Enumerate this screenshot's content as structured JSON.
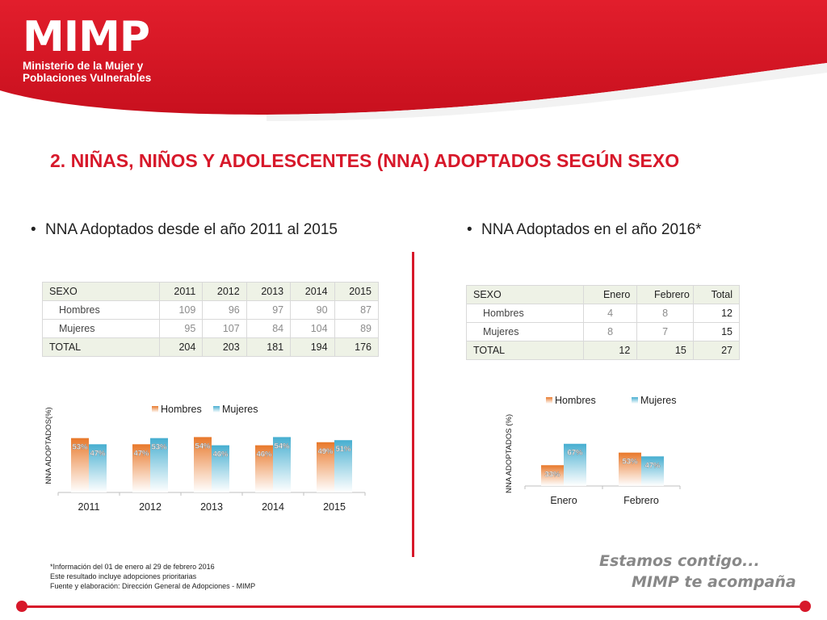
{
  "header": {
    "logo_main": "MIMP",
    "logo_sub_line1": "Ministerio de la Mujer y",
    "logo_sub_line2": "Poblaciones Vulnerables",
    "accent_color": "#d7182a"
  },
  "title": "2. NIÑAS, NIÑOS Y ADOLESCENTES (NNA) ADOPTADOS SEGÚN SEXO",
  "left": {
    "bullet": "NNA Adoptados desde el año 2011 al 2015",
    "table": {
      "headers": [
        "SEXO",
        "2011",
        "2012",
        "2013",
        "2014",
        "2015"
      ],
      "rows": [
        [
          "Hombres",
          "109",
          "96",
          "97",
          "90",
          "87"
        ],
        [
          "Mujeres",
          "95",
          "107",
          "84",
          "104",
          "89"
        ],
        [
          "TOTAL",
          "204",
          "203",
          "181",
          "194",
          "176"
        ]
      ]
    }
  },
  "right": {
    "bullet": "NNA Adoptados en el año 2016*",
    "table": {
      "headers": [
        "SEXO",
        "Enero",
        "Febrero",
        "Total"
      ],
      "rows": [
        [
          "Hombres",
          "4",
          "8",
          "12"
        ],
        [
          "Mujeres",
          "8",
          "7",
          "15"
        ],
        [
          "TOTAL",
          "12",
          "15",
          "27"
        ]
      ]
    }
  },
  "chart_data": [
    {
      "type": "bar",
      "categories": [
        "2011",
        "2012",
        "2013",
        "2014",
        "2015"
      ],
      "series": [
        {
          "name": "Hombres",
          "values": [
            53,
            47,
            54,
            46,
            49
          ],
          "labels": [
            "53%",
            "47%",
            "54%",
            "46%",
            "49%"
          ],
          "color": "#e8782a"
        },
        {
          "name": "Mujeres",
          "values": [
            47,
            53,
            46,
            54,
            51
          ],
          "labels": [
            "47%",
            "53%",
            "46%",
            "54%",
            "51%"
          ],
          "color": "#46aed0"
        }
      ],
      "ylabel": "NNA ADOPTADOS(%)",
      "legend": "top",
      "grid": false
    },
    {
      "type": "bar",
      "categories": [
        "Enero",
        "Febrero"
      ],
      "series": [
        {
          "name": "Hombres",
          "values": [
            33,
            53
          ],
          "labels": [
            "33%",
            "53%"
          ],
          "color": "#e8782a"
        },
        {
          "name": "Mujeres",
          "values": [
            67,
            47
          ],
          "labels": [
            "67%",
            "47%"
          ],
          "color": "#46aed0"
        }
      ],
      "ylabel": "NNA ADOPTADOS (%)",
      "legend": "top",
      "grid": false
    }
  ],
  "footnote": {
    "line1": "*Información del 01 de enero al 29 de febrero 2016",
    "line2": "Este resultado incluye adopciones prioritarias",
    "line3": "Fuente y elaboración: Dirección General de Adopciones - MIMP"
  },
  "slogan": {
    "line1": "Estamos contigo...",
    "line2": "MIMP te acompaña"
  }
}
